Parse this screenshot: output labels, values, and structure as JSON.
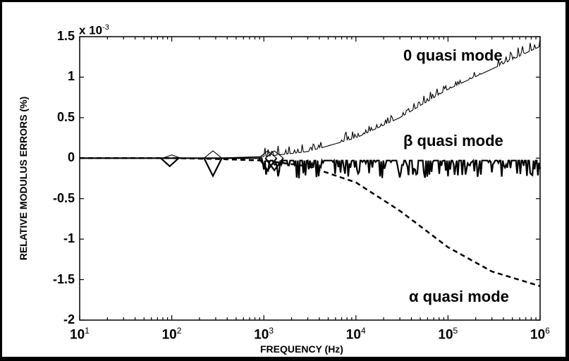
{
  "chart_data": {
    "type": "line",
    "title": "",
    "xlabel": "FREQUENCY (Hz)",
    "ylabel": "RELATIVE MODULUS ERRORS (%)",
    "y_multiplier": "x 10^-3",
    "xscale": "log",
    "xlim": [
      10,
      1000000
    ],
    "ylim": [
      -2,
      1.5
    ],
    "x_ticks": [
      "10^1",
      "10^2",
      "10^3",
      "10^4",
      "10^5",
      "10^6"
    ],
    "y_ticks": [
      "1.5",
      "1",
      "0.5",
      "0",
      "-0.5",
      "-1",
      "-1.5",
      "-2"
    ],
    "grid": false,
    "legend": "none (inline annotations)",
    "annotations": [
      "0 quasi mode",
      "β quasi mode",
      "α quasi mode"
    ],
    "x": [
      10,
      100,
      300,
      1000,
      3000,
      10000,
      30000,
      100000,
      300000,
      1000000
    ],
    "series": [
      {
        "name": "0 quasi mode",
        "style": "solid thin, noisy upward spikes",
        "values": [
          0.0,
          0.0,
          0.0,
          0.02,
          0.08,
          0.25,
          0.5,
          0.85,
          1.1,
          1.38
        ]
      },
      {
        "name": "β quasi mode",
        "style": "solid thick, noisy downward spikes",
        "values": [
          0.0,
          -0.05,
          -0.2,
          -0.05,
          -0.05,
          -0.05,
          -0.05,
          -0.05,
          -0.05,
          -0.05
        ]
      },
      {
        "name": "α quasi mode",
        "style": "dashed",
        "values": [
          0.0,
          0.0,
          -0.01,
          -0.03,
          -0.1,
          -0.3,
          -0.65,
          -1.1,
          -1.4,
          -1.58
        ]
      }
    ]
  },
  "labels": {
    "multiplier_base": "x 10",
    "multiplier_exp": "-3",
    "ylabel": "RELATIVE MODULUS ERRORS (%)",
    "xlabel": "FREQUENCY (Hz)",
    "ann0": "0 quasi mode",
    "annBeta": "β quasi mode",
    "annAlpha": "α quasi mode",
    "y": [
      "1.5",
      "1",
      "0.5",
      "0",
      "-0.5",
      "-1",
      "-1.5",
      "-2"
    ],
    "x_base": "10",
    "x_exp": [
      "1",
      "2",
      "3",
      "4",
      "5",
      "6"
    ]
  }
}
